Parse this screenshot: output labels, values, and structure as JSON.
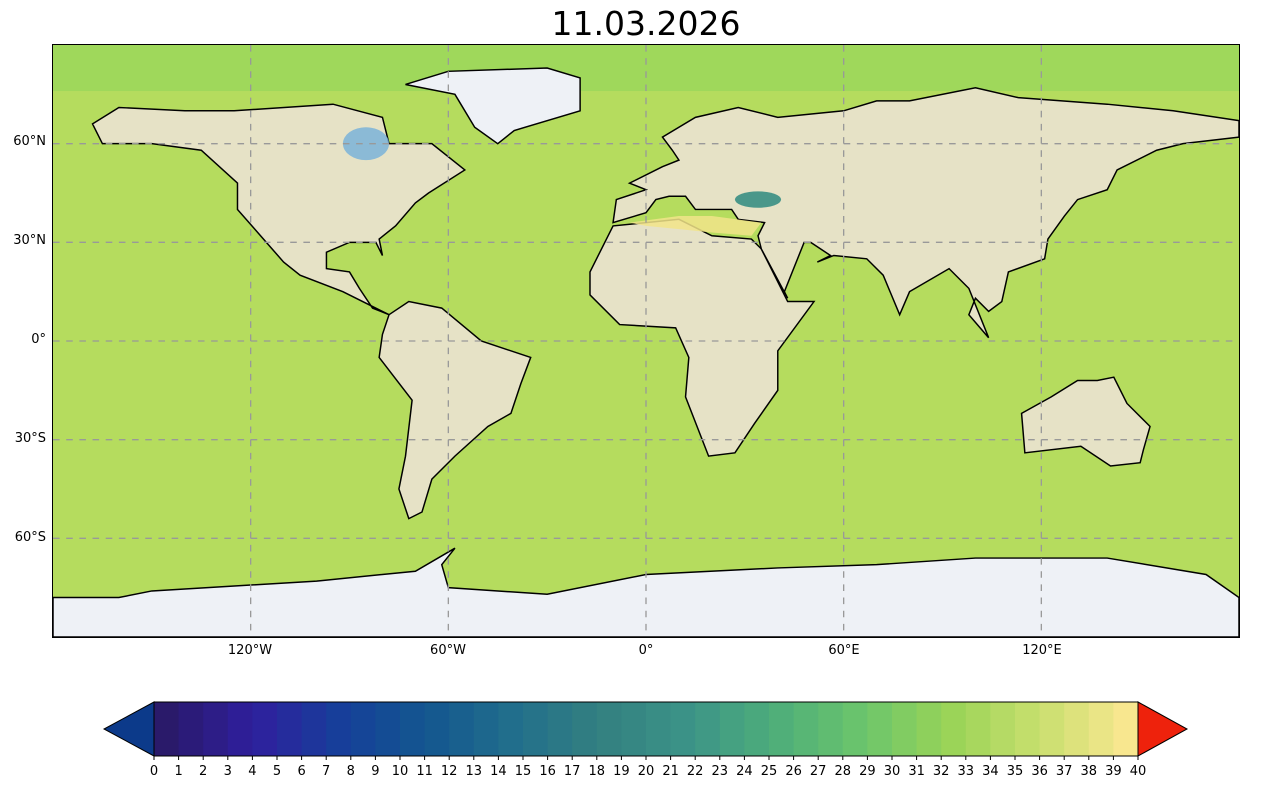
{
  "title": "11.03.2026",
  "map": {
    "projection": "equirectangular",
    "ocean_color": "#b5dc5e",
    "land_color": "#e8e2c8",
    "ice_color": "#eef1f6",
    "shallow_water_color": "#7ab3d8",
    "gridlines": "dashed",
    "lat_labels": [
      "60°N",
      "30°N",
      "0°",
      "30°S",
      "60°S"
    ],
    "lon_labels": [
      "120°W",
      "60°W",
      "0°",
      "60°E",
      "120°E"
    ]
  },
  "colorbar": {
    "min": 0,
    "max": 40,
    "step": 1,
    "extend": "both",
    "under_color": "#0c3a8a",
    "over_color": "#ee220c",
    "anchor_colors": [
      "#2a1a6a",
      "#2f1f9e",
      "#163f9a",
      "#13578f",
      "#226f8c",
      "#338080",
      "#3c9488",
      "#4eae7a",
      "#6cc56c",
      "#9ad457",
      "#c8df6e",
      "#f8e78f"
    ],
    "tick_labels": [
      "0",
      "1",
      "2",
      "3",
      "4",
      "5",
      "6",
      "7",
      "8",
      "9",
      "10",
      "11",
      "12",
      "13",
      "14",
      "15",
      "16",
      "17",
      "18",
      "19",
      "20",
      "21",
      "22",
      "23",
      "24",
      "25",
      "26",
      "27",
      "28",
      "29",
      "30",
      "31",
      "32",
      "33",
      "34",
      "35",
      "36",
      "37",
      "38",
      "39",
      "40"
    ]
  }
}
